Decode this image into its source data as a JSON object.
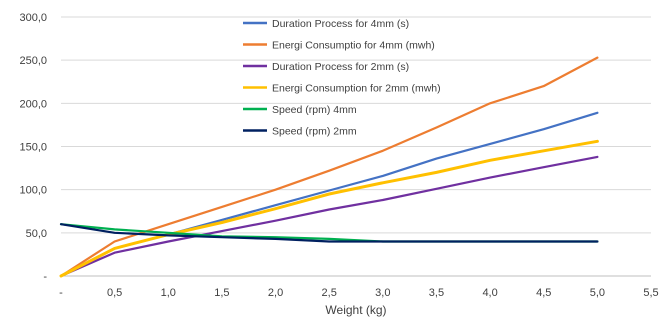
{
  "chart_data": {
    "type": "line",
    "xlabel": "Weight (kg)",
    "ylabel": "",
    "xlim": [
      0,
      5.5
    ],
    "ylim": [
      0,
      300
    ],
    "x_ticks": [
      "-",
      "0,5",
      "1,0",
      "1,5",
      "2,0",
      "2,5",
      "3,0",
      "3,5",
      "4,0",
      "4,5",
      "5,0",
      "5,5"
    ],
    "y_ticks": [
      "-",
      "50,0",
      "100,0",
      "150,0",
      "200,0",
      "250,0",
      "300,0"
    ],
    "grid": "horizontal",
    "legend_position": "top-center",
    "series": [
      {
        "name": "Duration Process for 4mm (s)",
        "color": "#4472c4",
        "x": [
          0,
          0.5,
          1.0,
          1.5,
          2.0,
          2.5,
          3.0,
          3.5,
          4.0,
          4.5,
          5.0
        ],
        "y": [
          0,
          32,
          48,
          65,
          82,
          99,
          116,
          136,
          153,
          170,
          189
        ]
      },
      {
        "name": "Energi Consumptio for 4mm (mwh)",
        "color": "#ed7d31",
        "x": [
          0,
          0.5,
          1.0,
          1.5,
          2.0,
          2.5,
          3.0,
          3.5,
          4.0,
          4.5,
          5.0
        ],
        "y": [
          0,
          40,
          60,
          80,
          100,
          122,
          145,
          172,
          200,
          220,
          253
        ]
      },
      {
        "name": "Duration Process for 2mm (s)",
        "color": "#7030a0",
        "x": [
          0,
          0.5,
          1.0,
          1.5,
          2.0,
          2.5,
          3.0,
          3.5,
          4.0,
          4.5,
          5.0
        ],
        "y": [
          0,
          27,
          40,
          52,
          64,
          77,
          88,
          101,
          114,
          126,
          138
        ]
      },
      {
        "name": "Energi Consumption for 2mm (mwh)",
        "color": "#ffc000",
        "x": [
          0,
          0.5,
          1.0,
          1.5,
          2.0,
          2.5,
          3.0,
          3.5,
          4.0,
          4.5,
          5.0
        ],
        "y": [
          0,
          32,
          48,
          62,
          78,
          95,
          108,
          120,
          134,
          145,
          156
        ]
      },
      {
        "name": "Speed (rpm) 4mm",
        "color": "#00b050",
        "x": [
          0,
          0.5,
          1.0,
          1.5,
          2.0,
          2.5,
          3.0,
          3.5,
          4.0,
          4.5,
          5.0
        ],
        "y": [
          60,
          54,
          50,
          46,
          45,
          43,
          40,
          40,
          40,
          40,
          40
        ]
      },
      {
        "name": "Speed (rpm) 2mm",
        "color": "#002060",
        "x": [
          0,
          0.5,
          1.0,
          1.5,
          2.0,
          2.5,
          3.0,
          3.5,
          4.0,
          4.5,
          5.0
        ],
        "y": [
          60,
          50,
          47,
          45,
          43,
          40,
          40,
          40,
          40,
          40,
          40
        ]
      }
    ]
  }
}
